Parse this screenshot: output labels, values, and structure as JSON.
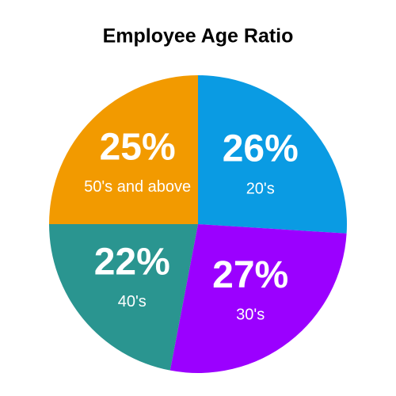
{
  "chart_data": {
    "type": "pie",
    "title": "Employee Age Ratio",
    "categories": [
      "20's",
      "30's",
      "40's",
      "50's and above"
    ],
    "values": [
      26,
      27,
      22,
      25
    ],
    "value_labels": [
      "26%",
      "27%",
      "22%",
      "25%"
    ],
    "colors": [
      "#0a9be3",
      "#9b00ff",
      "#2a9590",
      "#f29a00"
    ]
  }
}
